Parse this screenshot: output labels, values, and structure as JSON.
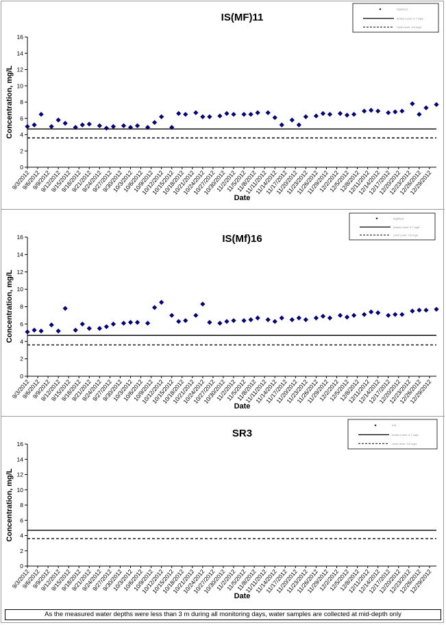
{
  "note": "As the measured water depths were less than 3 m during all monitoring days, water samples are collected  at mid-depth only",
  "chart_data": [
    {
      "type": "scatter",
      "title": "IS(MF)11",
      "xlabel": "Date",
      "ylabel": "Concentration, mg/L",
      "ylim": [
        0,
        16
      ],
      "yticks": [
        "0",
        "2",
        "4",
        "6",
        "8",
        "10",
        "12",
        "14",
        "16"
      ],
      "legend_placement": "top-right",
      "legend": [
        "IS(MF)11",
        "Action Level: 4.7 mg/L",
        "Limit Level: 3.6 mg/L"
      ],
      "x_tick_labels": [
        "9/3/2012",
        "9/6/2012",
        "9/9/2012",
        "9/12/2012",
        "9/15/2012",
        "9/18/2012",
        "9/21/2012",
        "9/24/2012",
        "9/27/2012",
        "9/30/2012",
        "10/3/2012",
        "10/6/2012",
        "10/9/2012",
        "10/12/2012",
        "10/15/2012",
        "10/18/2012",
        "10/21/2012",
        "10/24/2012",
        "10/27/2012",
        "10/30/2012",
        "11/2/2012",
        "11/5/2012",
        "11/8/2012",
        "11/11/2012",
        "11/14/2012",
        "11/17/2012",
        "11/20/2012",
        "11/23/2012",
        "11/26/2012",
        "11/29/2012",
        "12/2/2012",
        "12/5/2012",
        "12/8/2012",
        "12/11/2012",
        "12/14/2012",
        "12/17/2012",
        "12/20/2012",
        "12/23/2012",
        "12/26/2012",
        "12/29/2012"
      ],
      "x_start": "9/3/2012",
      "x_end": "12/31/2012",
      "reference_lines": [
        {
          "name": "Action Level",
          "value": 4.7,
          "style": "solid"
        },
        {
          "name": "Limit Level",
          "value": 3.6,
          "style": "dashed"
        }
      ],
      "series": [
        {
          "name": "IS(MF)11",
          "marker": "diamond",
          "color": "#000080",
          "points": [
            [
              "9/3/2012",
              5.0
            ],
            [
              "9/5/2012",
              5.2
            ],
            [
              "9/7/2012",
              6.5
            ],
            [
              "9/10/2012",
              5.0
            ],
            [
              "9/12/2012",
              5.8
            ],
            [
              "9/14/2012",
              5.4
            ],
            [
              "9/17/2012",
              4.9
            ],
            [
              "9/19/2012",
              5.2
            ],
            [
              "9/21/2012",
              5.3
            ],
            [
              "9/24/2012",
              5.1
            ],
            [
              "9/26/2012",
              4.8
            ],
            [
              "9/28/2012",
              5.0
            ],
            [
              "10/1/2012",
              5.1
            ],
            [
              "10/3/2012",
              4.9
            ],
            [
              "10/5/2012",
              5.1
            ],
            [
              "10/8/2012",
              4.9
            ],
            [
              "10/10/2012",
              5.5
            ],
            [
              "10/12/2012",
              6.2
            ],
            [
              "10/15/2012",
              4.9
            ],
            [
              "10/17/2012",
              6.6
            ],
            [
              "10/19/2012",
              6.5
            ],
            [
              "10/22/2012",
              6.7
            ],
            [
              "10/24/2012",
              6.2
            ],
            [
              "10/26/2012",
              6.2
            ],
            [
              "10/29/2012",
              6.3
            ],
            [
              "10/31/2012",
              6.6
            ],
            [
              "11/2/2012",
              6.5
            ],
            [
              "11/5/2012",
              6.5
            ],
            [
              "11/7/2012",
              6.5
            ],
            [
              "11/9/2012",
              6.7
            ],
            [
              "11/12/2012",
              6.7
            ],
            [
              "11/14/2012",
              6.1
            ],
            [
              "11/16/2012",
              5.2
            ],
            [
              "11/19/2012",
              5.8
            ],
            [
              "11/21/2012",
              5.2
            ],
            [
              "11/23/2012",
              6.2
            ],
            [
              "11/26/2012",
              6.3
            ],
            [
              "11/28/2012",
              6.6
            ],
            [
              "11/30/2012",
              6.5
            ],
            [
              "12/3/2012",
              6.6
            ],
            [
              "12/5/2012",
              6.4
            ],
            [
              "12/7/2012",
              6.5
            ],
            [
              "12/10/2012",
              6.9
            ],
            [
              "12/12/2012",
              7.0
            ],
            [
              "12/14/2012",
              6.9
            ],
            [
              "12/17/2012",
              6.7
            ],
            [
              "12/19/2012",
              6.8
            ],
            [
              "12/21/2012",
              6.9
            ],
            [
              "12/24/2012",
              7.8
            ],
            [
              "12/26/2012",
              6.5
            ],
            [
              "12/28/2012",
              7.3
            ],
            [
              "12/31/2012",
              7.7
            ]
          ]
        }
      ]
    },
    {
      "type": "scatter",
      "title": "IS(Mf)16",
      "xlabel": "Date",
      "ylabel": "Concentration, mg/L",
      "ylim": [
        0,
        16
      ],
      "yticks": [
        "0",
        "2",
        "4",
        "6",
        "8",
        "10",
        "12",
        "14",
        "16"
      ],
      "legend_placement": "top-right",
      "legend": [
        "IS(Mf)16",
        "Action Level: 4.7 mg/L",
        "Limit Level: 3.6 mg/L"
      ],
      "x_tick_labels": [
        "9/3/2012",
        "9/6/2012",
        "9/9/2012",
        "9/12/2012",
        "9/15/2012",
        "9/18/2012",
        "9/21/2012",
        "9/24/2012",
        "9/27/2012",
        "9/30/2012",
        "10/3/2012",
        "10/6/2012",
        "10/9/2012",
        "10/12/2012",
        "10/15/2012",
        "10/18/2012",
        "10/21/2012",
        "10/24/2012",
        "10/27/2012",
        "10/30/2012",
        "11/2/2012",
        "11/5/2012",
        "11/8/2012",
        "11/11/2012",
        "11/14/2012",
        "11/17/2012",
        "11/20/2012",
        "11/23/2012",
        "11/26/2012",
        "11/29/2012",
        "12/2/2012",
        "12/5/2012",
        "12/8/2012",
        "12/11/2012",
        "12/14/2012",
        "12/17/2012",
        "12/20/2012",
        "12/23/2012",
        "12/26/2012",
        "12/29/2012"
      ],
      "x_start": "9/3/2012",
      "x_end": "12/31/2012",
      "reference_lines": [
        {
          "name": "Action Level",
          "value": 4.7,
          "style": "solid"
        },
        {
          "name": "Limit Level",
          "value": 3.6,
          "style": "dashed"
        }
      ],
      "series": [
        {
          "name": "IS(Mf)16",
          "marker": "diamond",
          "color": "#000080",
          "points": [
            [
              "9/3/2012",
              5.1
            ],
            [
              "9/5/2012",
              5.3
            ],
            [
              "9/7/2012",
              5.2
            ],
            [
              "9/10/2012",
              5.9
            ],
            [
              "9/12/2012",
              5.2
            ],
            [
              "9/14/2012",
              7.8
            ],
            [
              "9/17/2012",
              5.3
            ],
            [
              "9/19/2012",
              6.0
            ],
            [
              "9/21/2012",
              5.5
            ],
            [
              "9/24/2012",
              5.5
            ],
            [
              "9/26/2012",
              5.7
            ],
            [
              "9/28/2012",
              6.0
            ],
            [
              "10/1/2012",
              6.1
            ],
            [
              "10/3/2012",
              6.2
            ],
            [
              "10/5/2012",
              6.2
            ],
            [
              "10/8/2012",
              6.1
            ],
            [
              "10/10/2012",
              7.9
            ],
            [
              "10/12/2012",
              8.5
            ],
            [
              "10/15/2012",
              7.0
            ],
            [
              "10/17/2012",
              6.3
            ],
            [
              "10/19/2012",
              6.4
            ],
            [
              "10/22/2012",
              7.0
            ],
            [
              "10/24/2012",
              8.3
            ],
            [
              "10/26/2012",
              6.2
            ],
            [
              "10/29/2012",
              6.1
            ],
            [
              "10/31/2012",
              6.3
            ],
            [
              "11/2/2012",
              6.4
            ],
            [
              "11/5/2012",
              6.4
            ],
            [
              "11/7/2012",
              6.5
            ],
            [
              "11/9/2012",
              6.7
            ],
            [
              "11/12/2012",
              6.5
            ],
            [
              "11/14/2012",
              6.3
            ],
            [
              "11/16/2012",
              6.7
            ],
            [
              "11/19/2012",
              6.5
            ],
            [
              "11/21/2012",
              6.7
            ],
            [
              "11/23/2012",
              6.5
            ],
            [
              "11/26/2012",
              6.7
            ],
            [
              "11/28/2012",
              6.9
            ],
            [
              "11/30/2012",
              6.7
            ],
            [
              "12/3/2012",
              7.0
            ],
            [
              "12/5/2012",
              6.8
            ],
            [
              "12/7/2012",
              7.0
            ],
            [
              "12/10/2012",
              7.1
            ],
            [
              "12/12/2012",
              7.4
            ],
            [
              "12/14/2012",
              7.3
            ],
            [
              "12/17/2012",
              7.0
            ],
            [
              "12/19/2012",
              7.1
            ],
            [
              "12/21/2012",
              7.1
            ],
            [
              "12/24/2012",
              7.5
            ],
            [
              "12/26/2012",
              7.6
            ],
            [
              "12/28/2012",
              7.6
            ],
            [
              "12/31/2012",
              7.7
            ]
          ]
        }
      ]
    },
    {
      "type": "scatter",
      "title": "SR3",
      "xlabel": "Date",
      "ylabel": "Concentration, mg/L",
      "ylim": [
        0,
        16
      ],
      "yticks": [
        "0",
        "2",
        "4",
        "6",
        "8",
        "10",
        "12",
        "14",
        "16"
      ],
      "legend_placement": "top-right",
      "legend": [
        "Sr3",
        "Action Level: 4.7 mg/L",
        "Limit Level: 3.6 mg/L"
      ],
      "x_tick_labels": [
        "9/3/2012",
        "9/6/2012",
        "9/9/2012",
        "9/12/2012",
        "9/15/2012",
        "9/18/2012",
        "9/21/2012",
        "9/24/2012",
        "9/27/2012",
        "9/30/2012",
        "10/3/2012",
        "10/6/2012",
        "10/9/2012",
        "10/12/2012",
        "10/15/2012",
        "10/18/2012",
        "10/21/2012",
        "10/24/2012",
        "10/27/2012",
        "10/30/2012",
        "11/2/2012",
        "11/5/2012",
        "11/8/2012",
        "11/11/2012",
        "11/14/2012",
        "11/17/2012",
        "11/20/2012",
        "11/23/2012",
        "11/26/2012",
        "11/29/2012",
        "12/2/2012",
        "12/5/2012",
        "12/8/2012",
        "12/11/2012",
        "12/14/2012",
        "12/17/2012",
        "12/20/2012",
        "12/23/2012",
        "12/26/2012",
        "12/29/2012"
      ],
      "x_start": "9/3/2012",
      "x_end": "12/31/2012",
      "reference_lines": [
        {
          "name": "Action Level",
          "value": 4.7,
          "style": "solid"
        },
        {
          "name": "Limit Level",
          "value": 3.6,
          "style": "dashed"
        }
      ],
      "series": [
        {
          "name": "Sr3",
          "marker": "diamond",
          "color": "#000080",
          "points": []
        }
      ]
    }
  ]
}
